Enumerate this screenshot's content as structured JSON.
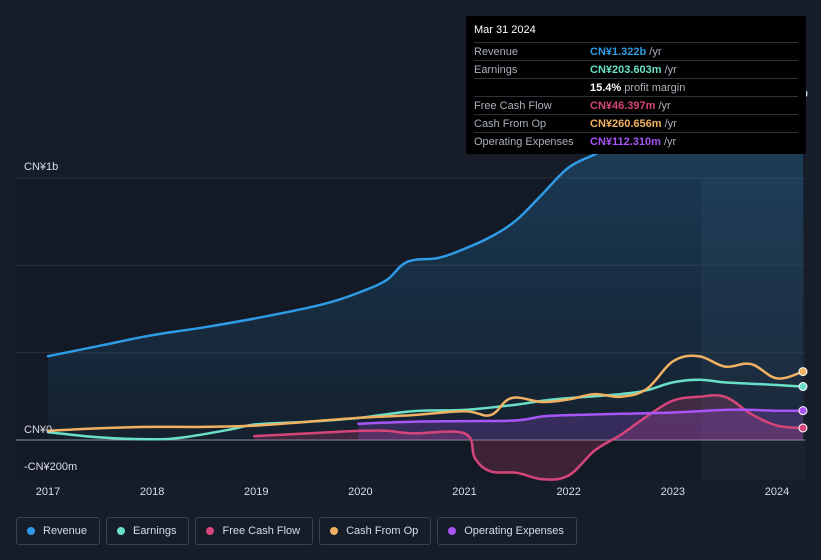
{
  "tooltip": {
    "date": "Mar 31 2024",
    "rows": [
      {
        "label": "Revenue",
        "value": "CN¥1.322b",
        "unit": "/yr",
        "color": "#2e9be6"
      },
      {
        "label": "Earnings",
        "value": "CN¥203.603m",
        "unit": "/yr",
        "color": "#6be0c8"
      },
      {
        "label": "",
        "value": "15.4%",
        "unit": "profit margin",
        "color": "#ffffff"
      },
      {
        "label": "Free Cash Flow",
        "value": "CN¥46.397m",
        "unit": "/yr",
        "color": "#d6457a"
      },
      {
        "label": "Cash From Op",
        "value": "CN¥260.656m",
        "unit": "/yr",
        "color": "#f0b162"
      },
      {
        "label": "Operating Expenses",
        "value": "CN¥112.310m",
        "unit": "/yr",
        "color": "#a855f7"
      }
    ]
  },
  "colors": {
    "background": "#161d28",
    "revenue": "#2e9be6",
    "earnings": "#6be0c8",
    "free_cash_flow": "#d6457a",
    "cash_from_op": "#f0b162",
    "operating_expenses": "#a855f7"
  },
  "legend": [
    {
      "key": "revenue",
      "label": "Revenue"
    },
    {
      "key": "earnings",
      "label": "Earnings"
    },
    {
      "key": "free_cash_flow",
      "label": "Free Cash Flow"
    },
    {
      "key": "cash_from_op",
      "label": "Cash From Op"
    },
    {
      "key": "operating_expenses",
      "label": "Operating Expenses"
    }
  ],
  "chart_data": {
    "type": "line",
    "y_tick_labels": [
      {
        "value": 1000,
        "label": "CN¥1b"
      },
      {
        "value": 0,
        "label": "CN¥0"
      },
      {
        "value": -200,
        "label": "-CN¥200m"
      }
    ],
    "x_tick_labels": [
      "2017",
      "2018",
      "2019",
      "2020",
      "2021",
      "2022",
      "2023",
      "2024"
    ],
    "xlim": [
      2016.7,
      2024.25
    ],
    "ylim": [
      -200,
      1400
    ],
    "grid": true,
    "legend_position": "bottom",
    "series": [
      {
        "key": "revenue",
        "name": "Revenue",
        "area": true,
        "points": [
          [
            2017.0,
            320
          ],
          [
            2017.5,
            360
          ],
          [
            2018.0,
            400
          ],
          [
            2018.5,
            430
          ],
          [
            2019.0,
            465
          ],
          [
            2019.5,
            505
          ],
          [
            2019.75,
            530
          ],
          [
            2020.0,
            565
          ],
          [
            2020.25,
            610
          ],
          [
            2020.45,
            680
          ],
          [
            2020.75,
            695
          ],
          [
            2021.0,
            730
          ],
          [
            2021.25,
            775
          ],
          [
            2021.5,
            840
          ],
          [
            2021.75,
            940
          ],
          [
            2022.0,
            1040
          ],
          [
            2022.25,
            1090
          ],
          [
            2022.5,
            1140
          ],
          [
            2022.75,
            1175
          ],
          [
            2023.0,
            1220
          ],
          [
            2023.25,
            1260
          ],
          [
            2023.5,
            1270
          ],
          [
            2023.75,
            1290
          ],
          [
            2024.0,
            1305
          ],
          [
            2024.25,
            1322
          ]
        ]
      },
      {
        "key": "earnings",
        "name": "Earnings",
        "area": false,
        "points": [
          [
            2017.0,
            30
          ],
          [
            2017.5,
            10
          ],
          [
            2018.0,
            3
          ],
          [
            2018.3,
            10
          ],
          [
            2018.75,
            40
          ],
          [
            2019.0,
            60
          ],
          [
            2019.5,
            70
          ],
          [
            2020.0,
            85
          ],
          [
            2020.5,
            110
          ],
          [
            2021.0,
            115
          ],
          [
            2021.5,
            135
          ],
          [
            2021.75,
            150
          ],
          [
            2022.0,
            160
          ],
          [
            2022.5,
            175
          ],
          [
            2022.75,
            190
          ],
          [
            2023.0,
            220
          ],
          [
            2023.25,
            230
          ],
          [
            2023.5,
            220
          ],
          [
            2023.75,
            215
          ],
          [
            2024.0,
            210
          ],
          [
            2024.25,
            204
          ]
        ]
      },
      {
        "key": "free_cash_flow",
        "name": "Free Cash Flow",
        "area": true,
        "points": [
          [
            2018.98,
            15
          ],
          [
            2019.5,
            25
          ],
          [
            2020.0,
            35
          ],
          [
            2020.25,
            35
          ],
          [
            2020.5,
            25
          ],
          [
            2021.0,
            25
          ],
          [
            2021.1,
            -70
          ],
          [
            2021.25,
            -120
          ],
          [
            2021.5,
            -125
          ],
          [
            2021.75,
            -150
          ],
          [
            2022.0,
            -135
          ],
          [
            2022.25,
            -40
          ],
          [
            2022.5,
            20
          ],
          [
            2022.75,
            90
          ],
          [
            2023.0,
            150
          ],
          [
            2023.25,
            165
          ],
          [
            2023.5,
            165
          ],
          [
            2023.75,
            100
          ],
          [
            2024.0,
            55
          ],
          [
            2024.25,
            46
          ]
        ]
      },
      {
        "key": "cash_from_op",
        "name": "Cash From Op",
        "area": false,
        "points": [
          [
            2017.0,
            35
          ],
          [
            2017.5,
            45
          ],
          [
            2018.0,
            50
          ],
          [
            2018.5,
            50
          ],
          [
            2019.0,
            55
          ],
          [
            2019.5,
            70
          ],
          [
            2020.0,
            85
          ],
          [
            2020.5,
            95
          ],
          [
            2021.0,
            110
          ],
          [
            2021.25,
            95
          ],
          [
            2021.45,
            160
          ],
          [
            2021.75,
            145
          ],
          [
            2022.0,
            155
          ],
          [
            2022.25,
            175
          ],
          [
            2022.5,
            165
          ],
          [
            2022.75,
            195
          ],
          [
            2023.0,
            300
          ],
          [
            2023.25,
            320
          ],
          [
            2023.5,
            280
          ],
          [
            2023.75,
            290
          ],
          [
            2024.0,
            235
          ],
          [
            2024.25,
            261
          ]
        ]
      },
      {
        "key": "operating_expenses",
        "name": "Operating Expenses",
        "area": true,
        "points": [
          [
            2019.98,
            62
          ],
          [
            2020.5,
            70
          ],
          [
            2021.0,
            72
          ],
          [
            2021.5,
            75
          ],
          [
            2021.75,
            90
          ],
          [
            2022.0,
            95
          ],
          [
            2022.5,
            100
          ],
          [
            2023.0,
            105
          ],
          [
            2023.5,
            115
          ],
          [
            2023.75,
            115
          ],
          [
            2024.0,
            112
          ],
          [
            2024.25,
            112
          ]
        ]
      }
    ]
  }
}
